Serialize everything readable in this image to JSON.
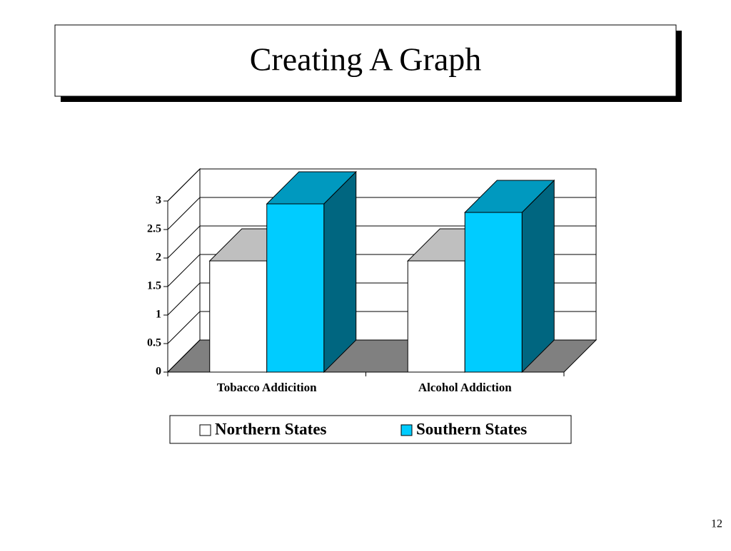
{
  "title": "Creating A Graph",
  "page_number": "12",
  "chart_data": {
    "type": "bar",
    "categories": [
      "Tobacco Addicition",
      "Alcohol Addiction"
    ],
    "series": [
      {
        "name": "Northern States",
        "color": "#ffffff",
        "values": [
          1.95,
          1.95
        ]
      },
      {
        "name": "Southern States",
        "color": "#00ccff",
        "values": [
          2.95,
          2.8
        ]
      }
    ],
    "ylim": [
      0,
      3
    ],
    "yticks": [
      0,
      0.5,
      1,
      1.5,
      2,
      2.5,
      3
    ],
    "grid": true
  }
}
